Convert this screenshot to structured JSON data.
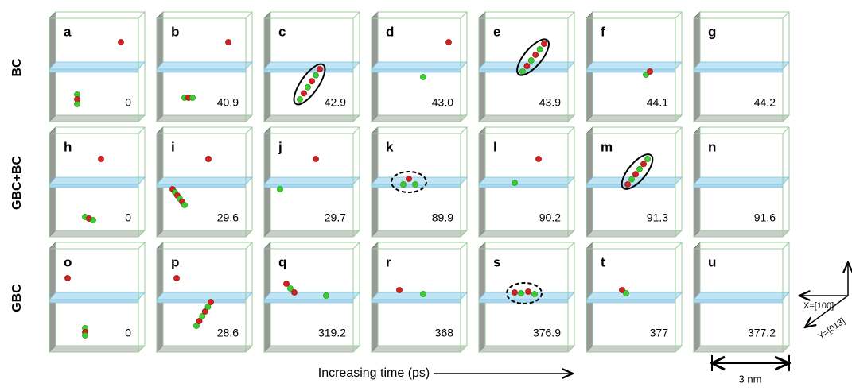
{
  "rows": [
    {
      "label": "BC",
      "panels": [
        {
          "letter": "a",
          "time": "0"
        },
        {
          "letter": "b",
          "time": "40.9"
        },
        {
          "letter": "c",
          "time": "42.9"
        },
        {
          "letter": "d",
          "time": "43.0"
        },
        {
          "letter": "e",
          "time": "43.9"
        },
        {
          "letter": "f",
          "time": "44.1"
        },
        {
          "letter": "g",
          "time": "44.2"
        }
      ]
    },
    {
      "label": "GBC+BC",
      "panels": [
        {
          "letter": "h",
          "time": "0"
        },
        {
          "letter": "i",
          "time": "29.6"
        },
        {
          "letter": "j",
          "time": "29.7"
        },
        {
          "letter": "k",
          "time": "89.9"
        },
        {
          "letter": "l",
          "time": "90.2"
        },
        {
          "letter": "m",
          "time": "91.3"
        },
        {
          "letter": "n",
          "time": "91.6"
        }
      ]
    },
    {
      "label": "GBC",
      "panels": [
        {
          "letter": "o",
          "time": "0"
        },
        {
          "letter": "p",
          "time": "28.6"
        },
        {
          "letter": "q",
          "time": "319.2"
        },
        {
          "letter": "r",
          "time": "368"
        },
        {
          "letter": "s",
          "time": "376.9"
        },
        {
          "letter": "t",
          "time": "377"
        },
        {
          "letter": "u",
          "time": "377.2"
        }
      ]
    }
  ],
  "footer": {
    "time_axis_label": "Increasing time (ps)",
    "scale_label": "3 nm",
    "x_axis_label": "X=[100]",
    "y_axis_label": "Y=[013]"
  }
}
